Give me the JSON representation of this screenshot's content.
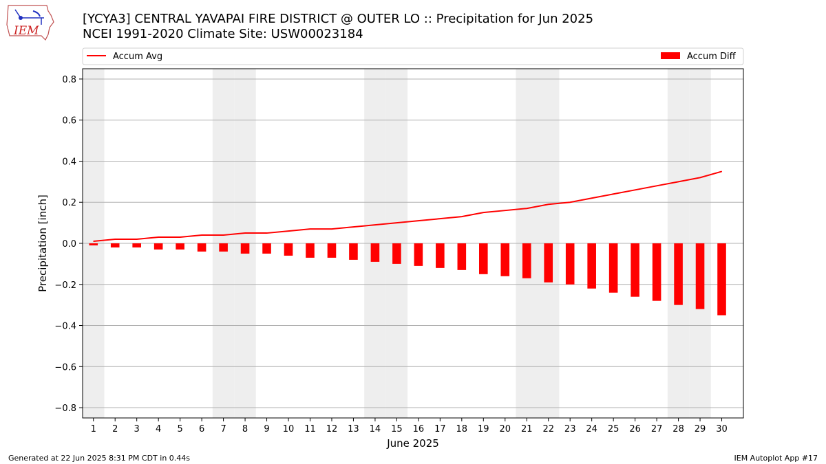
{
  "header": {
    "logo_text": "IEM",
    "title_line1": "[YCYA3] CENTRAL YAVAPAI FIRE DISTRICT @ OUTER LO :: Precipitation for Jun 2025",
    "title_line2": "NCEI 1991-2020 Climate Site: USW00023184"
  },
  "footer": {
    "generated": "Generated at 22 Jun 2025 8:31 PM CDT in 0.44s",
    "app": "IEM Autoplot App #17"
  },
  "chart_data": {
    "type": "bar",
    "xlabel": "June 2025",
    "ylabel": "Precipitation [inch]",
    "ylim": [
      -0.85,
      0.85
    ],
    "yticks": [
      0.8,
      0.6,
      0.4,
      0.2,
      0.0,
      -0.2,
      -0.4,
      -0.6,
      -0.8
    ],
    "ytick_labels": [
      "0.8",
      "0.6",
      "0.4",
      "0.2",
      "0.0",
      "−0.2",
      "−0.4",
      "−0.6",
      "−0.8"
    ],
    "categories": [
      "1",
      "2",
      "3",
      "4",
      "5",
      "6",
      "7",
      "8",
      "9",
      "10",
      "11",
      "12",
      "13",
      "14",
      "15",
      "16",
      "17",
      "18",
      "19",
      "20",
      "21",
      "22",
      "23",
      "24",
      "25",
      "26",
      "27",
      "28",
      "29",
      "30"
    ],
    "grid": "horizontal",
    "legend": [
      {
        "label": "Accum Avg",
        "kind": "line",
        "color": "#ff0000",
        "placement": "top-left"
      },
      {
        "label": "Accum Diff",
        "kind": "bar",
        "color": "#ff0000",
        "placement": "top-right"
      }
    ],
    "weekend_days": [
      1,
      7,
      8,
      14,
      15,
      21,
      22,
      28,
      29
    ],
    "series": [
      {
        "name": "Accum Avg",
        "type": "line",
        "color": "#ff0000",
        "values": [
          0.01,
          0.02,
          0.02,
          0.03,
          0.03,
          0.04,
          0.04,
          0.05,
          0.05,
          0.06,
          0.07,
          0.07,
          0.08,
          0.09,
          0.1,
          0.11,
          0.12,
          0.13,
          0.15,
          0.16,
          0.17,
          0.19,
          0.2,
          0.22,
          0.24,
          0.26,
          0.28,
          0.3,
          0.32,
          0.35
        ]
      },
      {
        "name": "Accum Diff",
        "type": "bar",
        "color": "#ff0000",
        "values": [
          -0.01,
          -0.02,
          -0.02,
          -0.03,
          -0.03,
          -0.04,
          -0.04,
          -0.05,
          -0.05,
          -0.06,
          -0.07,
          -0.07,
          -0.08,
          -0.09,
          -0.1,
          -0.11,
          -0.12,
          -0.13,
          -0.15,
          -0.16,
          -0.17,
          -0.19,
          -0.2,
          -0.22,
          -0.24,
          -0.26,
          -0.28,
          -0.3,
          -0.32,
          -0.35
        ]
      }
    ]
  }
}
